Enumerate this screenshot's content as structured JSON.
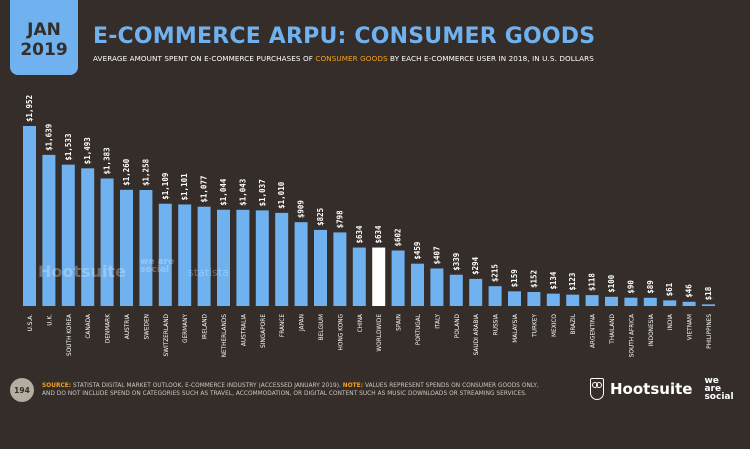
{
  "header": {
    "date_month": "JAN",
    "date_year": "2019",
    "title": "E-COMMERCE ARPU: CONSUMER GOODS",
    "subtitle_pre": "AVERAGE AMOUNT SPENT ON E-COMMERCE PURCHASES OF ",
    "subtitle_highlight": "CONSUMER GOODS",
    "subtitle_post": " BY EACH E-COMMERCE USER IN 2018, IN U.S. DOLLARS"
  },
  "colors": {
    "background": "#342d29",
    "bar": "#6fb2ef",
    "highlight_bar": "#ffffff",
    "accent": "#f7a21b"
  },
  "watermark": {
    "hootsuite": "Hootsuite",
    "weresocial": "we are social",
    "statista": "statista"
  },
  "chart_data": {
    "type": "bar",
    "title": "E-COMMERCE ARPU: CONSUMER GOODS",
    "xlabel": "",
    "ylabel": "U.S. Dollars",
    "ylim": [
      0,
      1952
    ],
    "grid": false,
    "highlight_category": "WORLDWIDE",
    "categories": [
      "U.S.A.",
      "U.K.",
      "SOUTH KOREA",
      "CANADA",
      "DENMARK",
      "AUSTRIA",
      "SWEDEN",
      "SWITZERLAND",
      "GERMANY",
      "IRELAND",
      "NETHERLANDS",
      "AUSTRALIA",
      "SINGAPORE",
      "FRANCE",
      "JAPAN",
      "BELGIUM",
      "HONG KONG",
      "CHINA",
      "WORLDWIDE",
      "SPAIN",
      "PORTUGAL",
      "ITALY",
      "POLAND",
      "SAUDI ARABIA",
      "RUSSIA",
      "MALAYSIA",
      "TURKEY",
      "MEXICO",
      "BRAZIL",
      "ARGENTINA",
      "THAILAND",
      "SOUTH AFRICA",
      "INDONESIA",
      "INDIA",
      "VIETNAM",
      "PHILIPPINES"
    ],
    "values": [
      1952,
      1639,
      1533,
      1493,
      1383,
      1260,
      1258,
      1109,
      1101,
      1077,
      1044,
      1043,
      1037,
      1010,
      909,
      825,
      798,
      634,
      634,
      602,
      459,
      407,
      339,
      294,
      215,
      159,
      152,
      134,
      123,
      118,
      100,
      90,
      89,
      61,
      46,
      18
    ],
    "labels": [
      "$1,952",
      "$1,639",
      "$1,533",
      "$1,493",
      "$1,383",
      "$1,260",
      "$1,258",
      "$1,109",
      "$1,101",
      "$1,077",
      "$1,044",
      "$1,043",
      "$1,037",
      "$1,010",
      "$909",
      "$825",
      "$798",
      "$634",
      "$634",
      "$602",
      "$459",
      "$407",
      "$339",
      "$294",
      "$215",
      "$159",
      "$152",
      "$134",
      "$123",
      "$118",
      "$100",
      "$90",
      "$89",
      "$61",
      "$46",
      "$18"
    ]
  },
  "footer": {
    "page_number": "194",
    "source_label": "SOURCE:",
    "source_text": " STATISTA DIGITAL MARKET OUTLOOK, E-COMMERCE INDUSTRY (ACCESSED JANUARY 2019). ",
    "note_label": "NOTE:",
    "note_text": " VALUES REPRESENT SPENDS ON CONSUMER GOODS ONLY,",
    "line2": "AND DO NOT INCLUDE SPEND ON CATEGORIES SUCH AS TRAVEL, ACCOMMODATION, OR DIGITAL CONTENT SUCH AS MUSIC DOWNLOADS OR STREAMING SERVICES.",
    "brand_hootsuite": "Hootsuite",
    "brand_was_1": "we",
    "brand_was_2": "are",
    "brand_was_3": "social"
  }
}
